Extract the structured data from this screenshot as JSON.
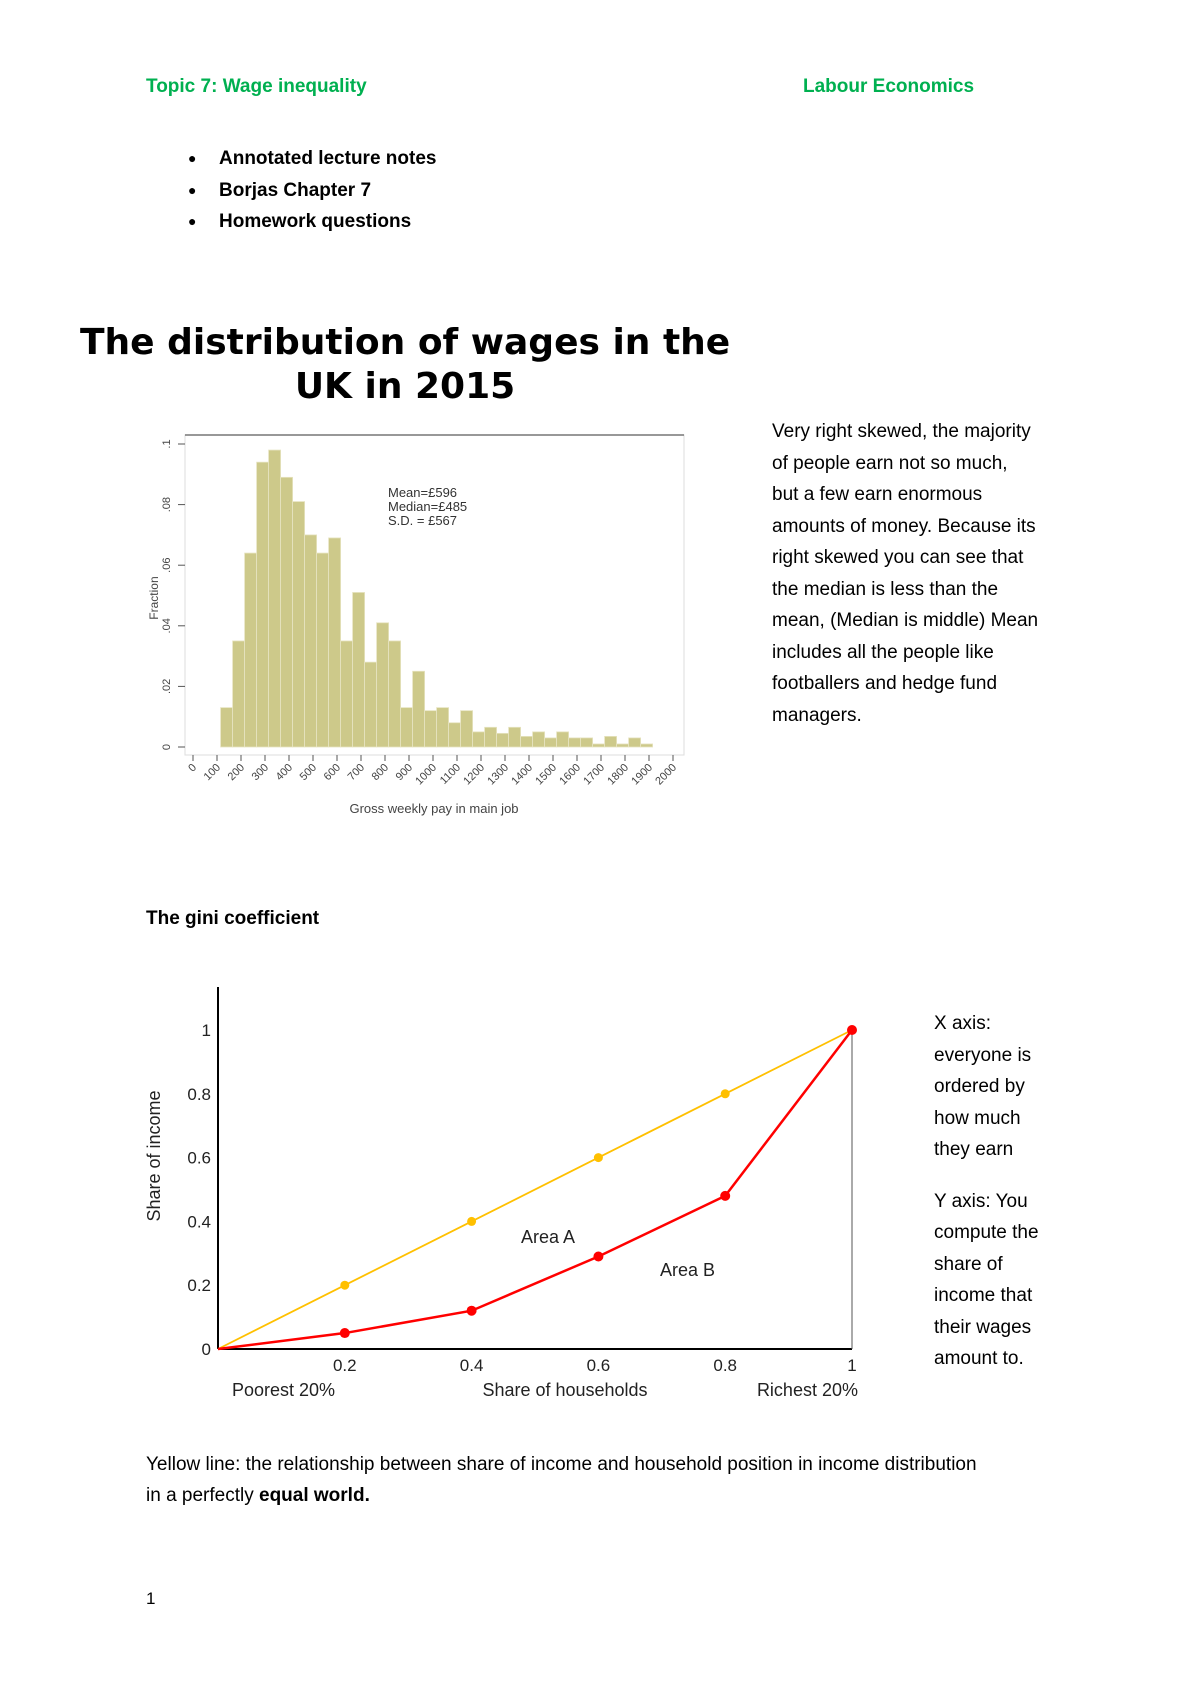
{
  "header": {
    "left": "Topic 7: Wage inequality",
    "right": "Labour Economics"
  },
  "bullets": [
    "Annotated lecture notes",
    "Borjas Chapter 7",
    "Homework questions"
  ],
  "section_title": [
    "The distribution of wages in the",
    "UK in 2015"
  ],
  "histogram_note": [
    "Very right skewed, the majority",
    "of people earn not so much,",
    "but a few earn enormous",
    "amounts of money. Because its",
    "right skewed you can see that",
    "the median is less than the",
    "mean, (Median is middle) Mean",
    "includes all the people like",
    "footballers and hedge fund",
    "managers."
  ],
  "gini_heading": "The gini coefficient",
  "gini_note": {
    "x": [
      "X axis:",
      "everyone is",
      "ordered by",
      "how much",
      "they earn"
    ],
    "y": [
      "Y axis: You",
      "compute the",
      "share of",
      "income that",
      "their wages",
      "amount to."
    ]
  },
  "paragraph": {
    "line1": "Yellow line: the relationship between share of income and household position in income distribution",
    "line2_prefix": "in a perfectly ",
    "line2_bold": "equal world."
  },
  "page_number": "1",
  "chart_data": [
    {
      "type": "bar",
      "xlabel": "Gross weekly pay in main job",
      "ylabel": "Fraction",
      "xticks": [
        "0",
        "100",
        "200",
        "300",
        "400",
        "500",
        "600",
        "700",
        "800",
        "900",
        "1000",
        "1100",
        "1200",
        "1300",
        "1400",
        "1500",
        "1600",
        "1700",
        "1800",
        "1900",
        "2000"
      ],
      "yticks": [
        "0",
        ".02",
        ".04",
        ".06",
        ".08",
        ".1"
      ],
      "xlim": [
        0,
        2000
      ],
      "ylim": [
        0,
        0.1
      ],
      "bin_width": 50,
      "bin_start": 115,
      "values": [
        0.013,
        0.035,
        0.064,
        0.094,
        0.098,
        0.089,
        0.081,
        0.07,
        0.064,
        0.069,
        0.035,
        0.051,
        0.028,
        0.041,
        0.035,
        0.013,
        0.025,
        0.012,
        0.013,
        0.008,
        0.012,
        0.005,
        0.0065,
        0.0045,
        0.0065,
        0.0035,
        0.005,
        0.003,
        0.005,
        0.003,
        0.003,
        0.001,
        0.0035,
        0.001,
        0.003,
        0.001
      ],
      "annotations": [
        "Mean=£596",
        "Median=£485",
        "S.D. = £567"
      ],
      "bar_color": "#cdc98a"
    },
    {
      "type": "line",
      "xlabel": "Share of households",
      "ylabel": "Share of income",
      "xlabel_left": "Poorest 20%",
      "xlabel_right": "Richest 20%",
      "xticks": [
        "0.2",
        "0.4",
        "0.6",
        "0.8",
        "1"
      ],
      "yticks": [
        "0",
        "0.2",
        "0.4",
        "0.6",
        "0.8",
        "1"
      ],
      "xlim": [
        0,
        1
      ],
      "ylim": [
        0,
        1.1
      ],
      "series": [
        {
          "color": "#ffc000",
          "x": [
            0,
            0.2,
            0.4,
            0.6,
            0.8,
            1
          ],
          "y": [
            0,
            0.2,
            0.4,
            0.6,
            0.8,
            1
          ]
        },
        {
          "color": "#ff0000",
          "x": [
            0,
            0.2,
            0.4,
            0.6,
            0.8,
            1
          ],
          "y": [
            0,
            0.05,
            0.12,
            0.29,
            0.48,
            1
          ]
        }
      ],
      "annotations": [
        "Area A",
        "Area B"
      ]
    }
  ]
}
